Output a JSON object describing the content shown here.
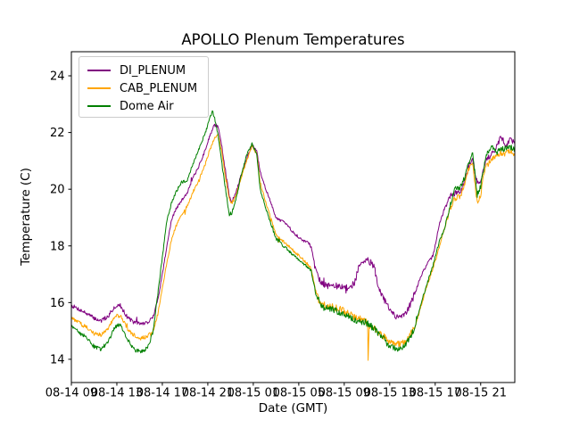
{
  "chart_data": {
    "type": "line",
    "title": "APOLLO Plenum Temperatures",
    "xlabel": "Date (GMT)",
    "ylabel": "Temperature (C)",
    "grid": false,
    "legend_position": "upper left",
    "x_unit": "hours after 08-14 09:00 GMT",
    "xlim": [
      0,
      39
    ],
    "ylim": [
      13.18,
      24.85
    ],
    "yticks": [
      14,
      16,
      18,
      20,
      22,
      24
    ],
    "x_tick_hours": [
      0,
      4,
      8,
      12,
      16,
      20,
      24,
      28,
      32,
      36
    ],
    "x_tick_labels": [
      "08-14 09",
      "08-14 13",
      "08-14 17",
      "08-14 21",
      "08-15 01",
      "08-15 05",
      "08-15 09",
      "08-15 13",
      "08-15 17",
      "08-15 21"
    ],
    "noise_amplitude": 0.05,
    "t": [
      0,
      0.5,
      1.2,
      2.0,
      2.6,
      3.2,
      3.8,
      4.3,
      4.9,
      5.5,
      6.1,
      6.7,
      7.2,
      7.6,
      8.0,
      8.4,
      8.8,
      9.2,
      9.7,
      10.2,
      10.7,
      11.2,
      11.7,
      12.1,
      12.4,
      12.6,
      12.9,
      13.2,
      13.6,
      13.9,
      14.1,
      14.5,
      15.0,
      15.5,
      15.9,
      16.3,
      16.6,
      17.2,
      18.0,
      18.8,
      19.6,
      20.3,
      20.8,
      21.1,
      21.5,
      21.9,
      22.3,
      23.0,
      23.7,
      24.4,
      24.9,
      25.4,
      25.9,
      26.05,
      26.1,
      26.2,
      26.6,
      27.0,
      27.5,
      28.0,
      28.6,
      29.2,
      29.6,
      30.2,
      30.7,
      31.2,
      31.8,
      32.4,
      32.8,
      33.3,
      33.7,
      34.2,
      34.6,
      35.0,
      35.3,
      35.7,
      36.0,
      36.4,
      36.9,
      37.4,
      37.8,
      38.2,
      38.6,
      39.0
    ],
    "series": [
      {
        "name": "DI_PLENUM",
        "color": "#800080",
        "values": [
          15.9,
          15.8,
          15.65,
          15.45,
          15.35,
          15.5,
          15.85,
          15.9,
          15.5,
          15.3,
          15.25,
          15.3,
          15.5,
          16.1,
          17.0,
          18.0,
          18.9,
          19.3,
          19.6,
          19.9,
          20.4,
          20.8,
          21.3,
          21.8,
          22.1,
          22.3,
          22.2,
          21.6,
          20.5,
          19.75,
          19.55,
          19.9,
          20.6,
          21.2,
          21.55,
          21.35,
          20.6,
          19.9,
          19.0,
          18.8,
          18.45,
          18.2,
          18.15,
          17.95,
          17.2,
          16.75,
          16.6,
          16.6,
          16.55,
          16.5,
          16.7,
          17.4,
          17.55,
          17.5,
          17.5,
          17.45,
          17.3,
          16.6,
          16.1,
          15.75,
          15.45,
          15.6,
          15.75,
          16.3,
          16.9,
          17.3,
          17.65,
          18.8,
          19.3,
          19.75,
          19.85,
          19.9,
          20.3,
          20.9,
          21.05,
          20.2,
          20.3,
          21.0,
          21.2,
          21.5,
          21.85,
          21.55,
          21.75,
          21.65
        ]
      },
      {
        "name": "CAB_PLENUM",
        "color": "#FFA500",
        "values": [
          15.45,
          15.35,
          15.15,
          14.95,
          14.85,
          15.05,
          15.5,
          15.55,
          15.1,
          14.85,
          14.75,
          14.8,
          15.0,
          15.6,
          16.5,
          17.4,
          18.2,
          18.7,
          19.1,
          19.4,
          19.9,
          20.3,
          20.8,
          21.3,
          21.6,
          21.85,
          21.9,
          21.4,
          20.3,
          19.65,
          19.5,
          19.8,
          20.5,
          21.1,
          21.5,
          21.25,
          20.25,
          19.4,
          18.4,
          18.1,
          17.8,
          17.55,
          17.35,
          17.2,
          16.4,
          15.95,
          15.9,
          15.85,
          15.75,
          15.6,
          15.5,
          15.45,
          15.35,
          15.3,
          13.9,
          15.2,
          15.1,
          14.95,
          14.8,
          14.6,
          14.5,
          14.6,
          14.75,
          15.1,
          15.8,
          16.5,
          17.2,
          18.0,
          18.6,
          19.3,
          19.65,
          19.75,
          20.2,
          20.8,
          20.9,
          19.5,
          19.8,
          20.8,
          21.0,
          21.2,
          21.3,
          21.25,
          21.35,
          21.25
        ]
      },
      {
        "name": "Dome Air",
        "color": "#008000",
        "values": [
          15.15,
          15.0,
          14.8,
          14.45,
          14.35,
          14.6,
          15.1,
          15.25,
          14.75,
          14.35,
          14.25,
          14.4,
          15.0,
          16.3,
          17.6,
          18.9,
          19.5,
          19.9,
          20.25,
          20.3,
          20.9,
          21.4,
          21.9,
          22.4,
          22.75,
          22.5,
          21.9,
          21.0,
          19.9,
          19.05,
          19.15,
          19.7,
          20.6,
          21.3,
          21.6,
          21.25,
          20.0,
          19.2,
          18.25,
          17.95,
          17.65,
          17.4,
          17.25,
          17.1,
          16.3,
          15.95,
          15.8,
          15.75,
          15.65,
          15.5,
          15.4,
          15.35,
          15.3,
          15.25,
          15.25,
          15.2,
          15.1,
          14.9,
          14.7,
          14.45,
          14.35,
          14.45,
          14.65,
          15.1,
          15.9,
          16.55,
          17.3,
          18.2,
          18.6,
          19.4,
          20.0,
          20.05,
          20.4,
          21.0,
          21.25,
          19.8,
          20.1,
          21.1,
          21.5,
          21.3,
          21.4,
          21.45,
          21.5,
          21.4
        ]
      }
    ]
  }
}
